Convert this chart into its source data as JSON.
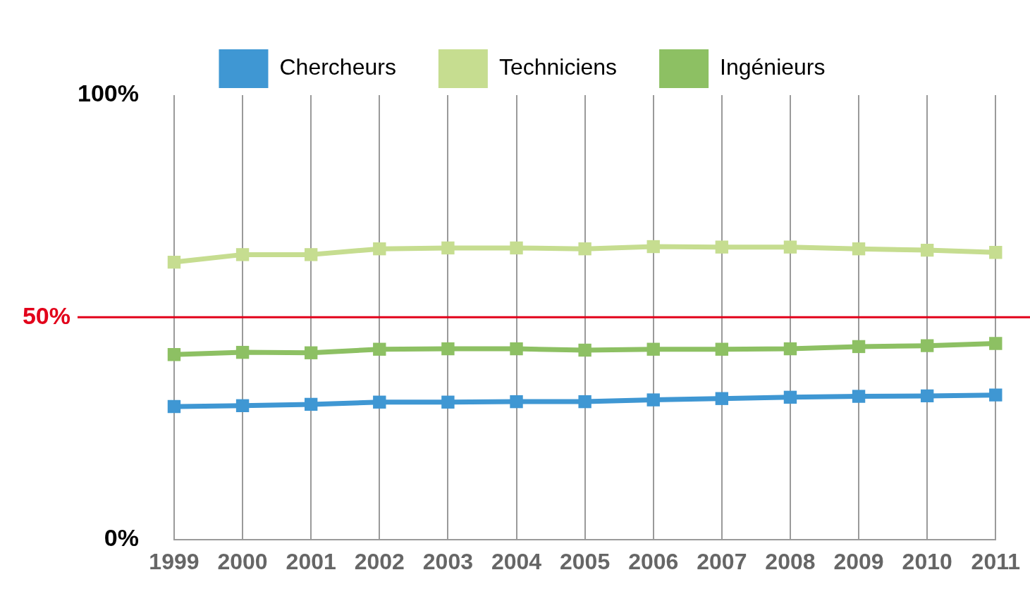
{
  "chart_data": {
    "type": "line",
    "categories": [
      "1999",
      "2000",
      "2001",
      "2002",
      "2003",
      "2004",
      "2005",
      "2006",
      "2007",
      "2008",
      "2009",
      "2010",
      "2011"
    ],
    "series": [
      {
        "name": "Chercheurs",
        "color": "#3f97d3",
        "values": [
          29.9,
          30.1,
          30.4,
          30.9,
          30.9,
          31.0,
          31.0,
          31.4,
          31.7,
          32.0,
          32.2,
          32.3,
          32.5
        ]
      },
      {
        "name": "Techniciens",
        "color": "#c6dd90",
        "values": [
          62.4,
          64.1,
          64.1,
          65.4,
          65.6,
          65.6,
          65.4,
          65.9,
          65.8,
          65.8,
          65.4,
          65.1,
          64.6
        ]
      },
      {
        "name": "Ingénieurs",
        "color": "#8dc063",
        "values": [
          41.6,
          42.1,
          42.0,
          42.8,
          42.9,
          42.9,
          42.6,
          42.8,
          42.8,
          42.9,
          43.4,
          43.6,
          44.1
        ]
      }
    ],
    "ylim": [
      0,
      100
    ],
    "yticks": [
      {
        "value": 0,
        "label": "0%"
      },
      {
        "value": 100,
        "label": "100%"
      }
    ],
    "ref_lines": [
      {
        "axis": "y",
        "value": 50,
        "label": "50%",
        "color": "#e2001a"
      }
    ],
    "grid": "x",
    "legend": "top",
    "marker": "square",
    "line_style": "solid"
  }
}
